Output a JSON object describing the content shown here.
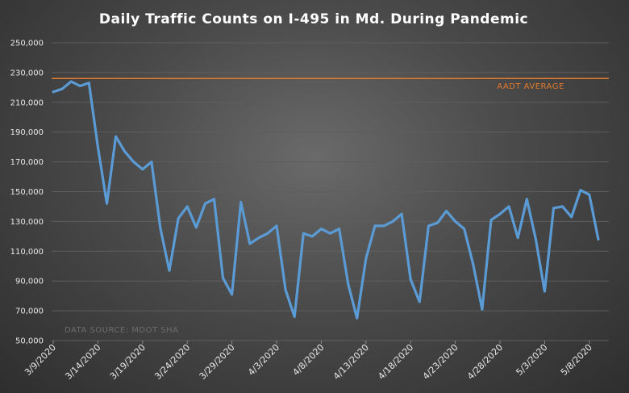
{
  "chart_data": {
    "type": "line",
    "title": "Daily Traffic Counts on I-495 in Md. During Pandemic",
    "ylim": [
      50000,
      250000
    ],
    "yticks": [
      50000,
      70000,
      90000,
      110000,
      130000,
      150000,
      170000,
      190000,
      210000,
      230000,
      250000
    ],
    "ytick_labels": [
      "50,000",
      "70,000",
      "90,000",
      "110,000",
      "130,000",
      "150,000",
      "170,000",
      "190,000",
      "210,000",
      "230,000",
      "250,000"
    ],
    "x_tick_labels": [
      "3/9/2020",
      "3/14/2020",
      "3/19/2020",
      "3/24/2020",
      "3/29/2020",
      "4/3/2020",
      "4/8/2020",
      "4/13/2020",
      "4/18/2020",
      "4/23/2020",
      "4/28/2020",
      "5/3/2020",
      "5/8/2020"
    ],
    "x_start": "3/9/2020",
    "x_end": "5/10/2020",
    "grid": true,
    "series": [
      {
        "color": "#5b9bd5",
        "values": [
          217000,
          219000,
          224000,
          221000,
          223000,
          180000,
          142000,
          187000,
          177000,
          170000,
          165000,
          170000,
          125000,
          97000,
          132000,
          140000,
          126000,
          142000,
          145000,
          92000,
          81000,
          143000,
          115000,
          119000,
          122000,
          127000,
          84000,
          66000,
          122000,
          120000,
          125000,
          122000,
          125000,
          88000,
          65000,
          105000,
          127000,
          127000,
          130000,
          135000,
          91000,
          76000,
          127000,
          129000,
          137000,
          130000,
          125000,
          101000,
          71000,
          131000,
          135000,
          140000,
          119000,
          145000,
          118000,
          83000,
          139000,
          140000,
          133000,
          151000,
          148000,
          118000
        ]
      }
    ],
    "reference_line": {
      "value": 226000,
      "label": "AADT AVERAGE",
      "color": "#e07a2e"
    },
    "source_note": "DATA SOURCE: MDOT SHA"
  }
}
